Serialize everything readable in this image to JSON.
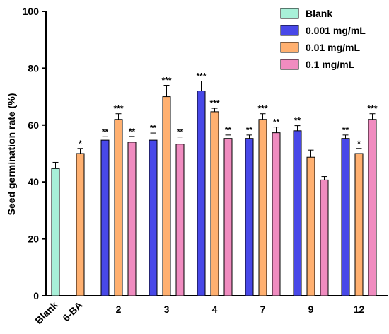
{
  "chart_data": {
    "type": "bar",
    "title": "",
    "xlabel": "",
    "ylabel": "Seed germination rate (%)",
    "ylim": [
      0,
      100
    ],
    "yticks": [
      0,
      20,
      40,
      60,
      80,
      100
    ],
    "grid": false,
    "legend_position": "top-right",
    "categories": [
      "Blank",
      "6-BA",
      "2",
      "3",
      "4",
      "7",
      "9",
      "12"
    ],
    "series": [
      {
        "name": "Blank",
        "color": "#A8F0D8",
        "values": [
          44.7,
          null,
          null,
          null,
          null,
          null,
          null,
          null
        ],
        "errors": [
          2.2,
          null,
          null,
          null,
          null,
          null,
          null,
          null
        ],
        "significance": [
          "",
          "",
          "",
          "",
          "",
          "",
          "",
          ""
        ]
      },
      {
        "name": "0.001 mg/mL",
        "color": "#4848E8",
        "values": [
          null,
          null,
          54.7,
          54.7,
          72.0,
          55.3,
          58.0,
          55.3
        ],
        "errors": [
          null,
          null,
          1.2,
          2.5,
          3.5,
          1.2,
          1.8,
          1.2
        ],
        "significance": [
          "",
          "",
          "**",
          "**",
          "***",
          "**",
          "**",
          "**"
        ]
      },
      {
        "name": "0.01 mg/mL",
        "color": "#FFB070",
        "values": [
          null,
          50.0,
          62.0,
          70.0,
          64.7,
          62.0,
          48.7,
          50.0
        ],
        "errors": [
          null,
          1.8,
          2.0,
          4.0,
          1.2,
          2.0,
          2.5,
          1.8
        ],
        "significance": [
          "",
          "*",
          "***",
          "***",
          "***",
          "***",
          "",
          "*"
        ]
      },
      {
        "name": "0.1 mg/mL",
        "color": "#F08CC0",
        "values": [
          null,
          null,
          54.0,
          53.3,
          55.3,
          57.3,
          40.7,
          62.0
        ],
        "errors": [
          null,
          null,
          2.0,
          2.5,
          1.2,
          2.0,
          1.2,
          2.0
        ],
        "significance": [
          "",
          "",
          "**",
          "**",
          "**",
          "**",
          "",
          "***"
        ]
      }
    ]
  }
}
